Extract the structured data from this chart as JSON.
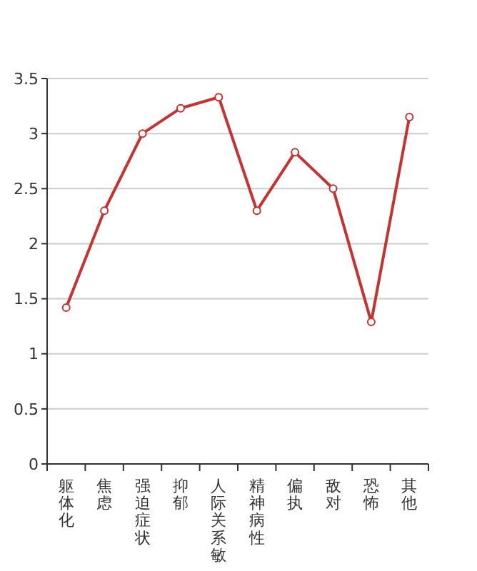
{
  "chart_data": {
    "type": "line",
    "categories": [
      "躯体化",
      "焦虑",
      "强迫症状",
      "抑郁",
      "人际关系敏",
      "精神病性",
      "偏执",
      "敌对",
      "恐怖",
      "其他"
    ],
    "series": [
      {
        "color": "#c8312f",
        "values": [
          1.42,
          2.3,
          3.0,
          3.23,
          3.33,
          2.3,
          2.83,
          2.5,
          1.29,
          3.15
        ]
      }
    ],
    "ylim": [
      0,
      3.5
    ],
    "yticks": [
      0,
      0.5,
      1,
      1.5,
      2,
      2.5,
      3,
      3.5
    ],
    "grid": "y",
    "marker": "circle",
    "line_style": "solid"
  }
}
